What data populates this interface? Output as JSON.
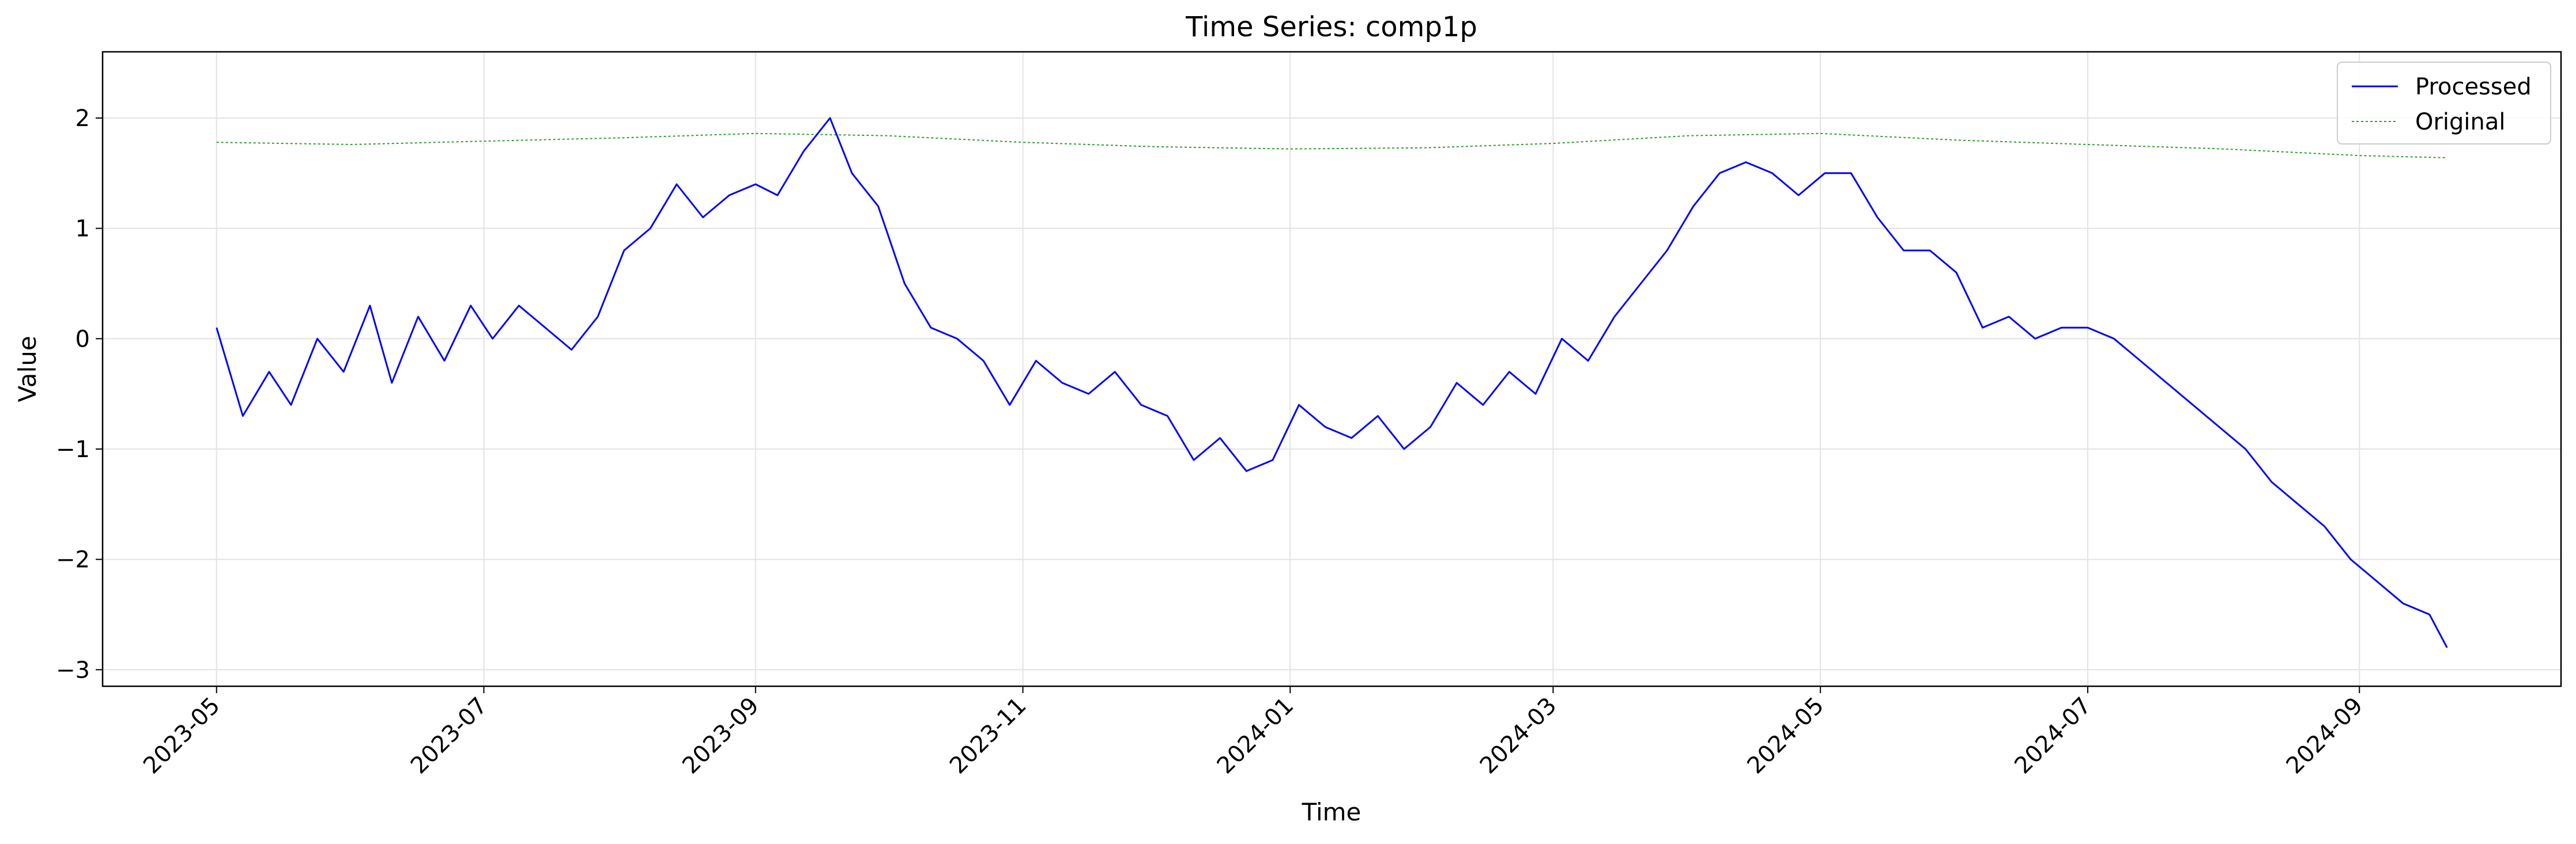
{
  "chart_data": {
    "type": "line",
    "title": "Time Series: comp1p",
    "xlabel": "Time",
    "ylabel": "Value",
    "xlim": [
      "2023-04-05",
      "2024-10-17"
    ],
    "ylim": [
      -3.15,
      2.6
    ],
    "grid": true,
    "legend_position": "top-right",
    "x_ticks": [
      "2023-05",
      "2023-07",
      "2023-09",
      "2023-11",
      "2024-01",
      "2024-03",
      "2024-05",
      "2024-07",
      "2024-09"
    ],
    "y_ticks": [
      2,
      1,
      0,
      -1,
      -2,
      -3
    ],
    "y_tick_labels": [
      "2",
      "1",
      "0",
      "−1",
      "−2",
      "−3"
    ],
    "series": [
      {
        "name": "Processed",
        "color": "#0000ff",
        "style": "solid",
        "points": [
          [
            "2023-05-01",
            0.1
          ],
          [
            "2023-05-07",
            -0.7
          ],
          [
            "2023-05-13",
            -0.3
          ],
          [
            "2023-05-18",
            -0.6
          ],
          [
            "2023-05-24",
            0.0
          ],
          [
            "2023-05-30",
            -0.3
          ],
          [
            "2023-06-05",
            0.3
          ],
          [
            "2023-06-10",
            -0.4
          ],
          [
            "2023-06-16",
            0.2
          ],
          [
            "2023-06-22",
            -0.2
          ],
          [
            "2023-06-28",
            0.3
          ],
          [
            "2023-07-03",
            0.0
          ],
          [
            "2023-07-09",
            0.3
          ],
          [
            "2023-07-15",
            0.1
          ],
          [
            "2023-07-21",
            -0.1
          ],
          [
            "2023-07-27",
            0.2
          ],
          [
            "2023-08-02",
            0.8
          ],
          [
            "2023-08-08",
            1.0
          ],
          [
            "2023-08-14",
            1.4
          ],
          [
            "2023-08-20",
            1.1
          ],
          [
            "2023-08-26",
            1.3
          ],
          [
            "2023-09-01",
            1.4
          ],
          [
            "2023-09-06",
            1.3
          ],
          [
            "2023-09-12",
            1.7
          ],
          [
            "2023-09-18",
            2.0
          ],
          [
            "2023-09-23",
            1.5
          ],
          [
            "2023-09-29",
            1.2
          ],
          [
            "2023-10-05",
            0.5
          ],
          [
            "2023-10-11",
            0.1
          ],
          [
            "2023-10-17",
            0.0
          ],
          [
            "2023-10-23",
            -0.2
          ],
          [
            "2023-10-29",
            -0.6
          ],
          [
            "2023-11-04",
            -0.2
          ],
          [
            "2023-11-10",
            -0.4
          ],
          [
            "2023-11-16",
            -0.5
          ],
          [
            "2023-11-22",
            -0.3
          ],
          [
            "2023-11-28",
            -0.6
          ],
          [
            "2023-12-04",
            -0.7
          ],
          [
            "2023-12-10",
            -1.1
          ],
          [
            "2023-12-16",
            -0.9
          ],
          [
            "2023-12-22",
            -1.2
          ],
          [
            "2023-12-28",
            -1.1
          ],
          [
            "2024-01-03",
            -0.6
          ],
          [
            "2024-01-09",
            -0.8
          ],
          [
            "2024-01-15",
            -0.9
          ],
          [
            "2024-01-21",
            -0.7
          ],
          [
            "2024-01-27",
            -1.0
          ],
          [
            "2024-02-02",
            -0.8
          ],
          [
            "2024-02-08",
            -0.4
          ],
          [
            "2024-02-14",
            -0.6
          ],
          [
            "2024-02-20",
            -0.3
          ],
          [
            "2024-02-26",
            -0.5
          ],
          [
            "2024-03-03",
            0.0
          ],
          [
            "2024-03-09",
            -0.2
          ],
          [
            "2024-03-15",
            0.2
          ],
          [
            "2024-03-21",
            0.5
          ],
          [
            "2024-03-27",
            0.8
          ],
          [
            "2024-04-02",
            1.2
          ],
          [
            "2024-04-08",
            1.5
          ],
          [
            "2024-04-14",
            1.6
          ],
          [
            "2024-04-20",
            1.5
          ],
          [
            "2024-04-26",
            1.3
          ],
          [
            "2024-05-02",
            1.5
          ],
          [
            "2024-05-08",
            1.5
          ],
          [
            "2024-05-14",
            1.1
          ],
          [
            "2024-05-20",
            0.8
          ],
          [
            "2024-05-26",
            0.8
          ],
          [
            "2024-06-01",
            0.6
          ],
          [
            "2024-06-07",
            0.1
          ],
          [
            "2024-06-13",
            0.2
          ],
          [
            "2024-06-19",
            0.0
          ],
          [
            "2024-06-25",
            0.1
          ],
          [
            "2024-07-01",
            0.1
          ],
          [
            "2024-07-07",
            0.0
          ],
          [
            "2024-07-13",
            -0.2
          ],
          [
            "2024-07-19",
            -0.4
          ],
          [
            "2024-07-25",
            -0.6
          ],
          [
            "2024-07-31",
            -0.8
          ],
          [
            "2024-08-06",
            -1.0
          ],
          [
            "2024-08-12",
            -1.3
          ],
          [
            "2024-08-18",
            -1.5
          ],
          [
            "2024-08-24",
            -1.7
          ],
          [
            "2024-08-30",
            -2.0
          ],
          [
            "2024-09-05",
            -2.2
          ],
          [
            "2024-09-11",
            -2.4
          ],
          [
            "2024-09-17",
            -2.5
          ],
          [
            "2024-09-21",
            -2.8
          ]
        ]
      },
      {
        "name": "Original",
        "color": "#2ca02c",
        "style": "dotted",
        "points": [
          [
            "2023-05-01",
            1.78
          ],
          [
            "2023-06-01",
            1.76
          ],
          [
            "2023-07-01",
            1.79
          ],
          [
            "2023-08-01",
            1.82
          ],
          [
            "2023-09-01",
            1.86
          ],
          [
            "2023-10-01",
            1.84
          ],
          [
            "2023-11-01",
            1.78
          ],
          [
            "2023-12-01",
            1.74
          ],
          [
            "2024-01-01",
            1.72
          ],
          [
            "2024-02-01",
            1.73
          ],
          [
            "2024-03-01",
            1.77
          ],
          [
            "2024-04-01",
            1.84
          ],
          [
            "2024-05-01",
            1.86
          ],
          [
            "2024-06-01",
            1.8
          ],
          [
            "2024-07-01",
            1.76
          ],
          [
            "2024-08-01",
            1.72
          ],
          [
            "2024-09-01",
            1.66
          ],
          [
            "2024-09-21",
            1.64
          ]
        ]
      }
    ]
  }
}
